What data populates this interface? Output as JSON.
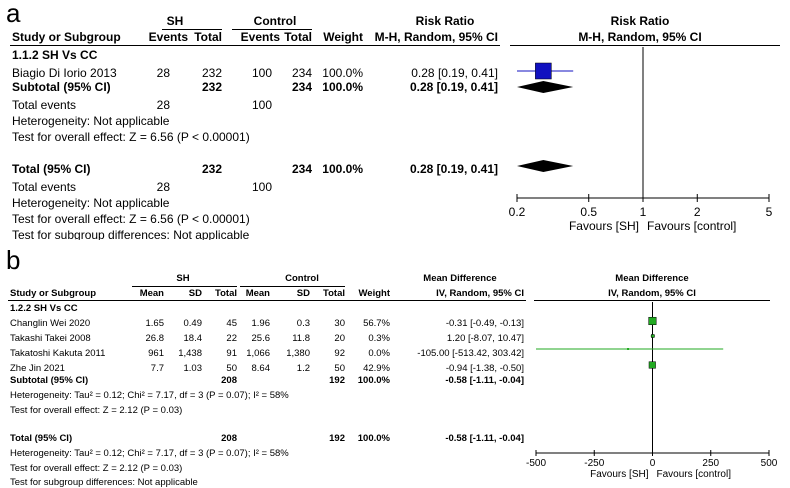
{
  "panels": {
    "a": {
      "letter": "a",
      "group_left": "SH",
      "group_right": "Control",
      "col_study": "Study or Subgroup",
      "col_events": "Events",
      "col_total": "Total",
      "col_weight": "Weight",
      "effect_title": "Risk Ratio",
      "effect_method": "M-H, Random, 95% CI",
      "plot_title": "Risk Ratio",
      "plot_method": "M-H, Random, 95% CI",
      "subgroup_label": "1.1.2 SH Vs CC",
      "studies": [
        {
          "name": "Biagio Di Iorio 2013",
          "ev1": "28",
          "tot1": "232",
          "ev2": "100",
          "tot2": "234",
          "weight": "100.0%",
          "ci": "0.28 [0.19, 0.41]"
        }
      ],
      "subtotal": {
        "label": "Subtotal (95% CI)",
        "tot1": "232",
        "tot2": "234",
        "weight": "100.0%",
        "ci": "0.28 [0.19, 0.41]"
      },
      "sub_events": {
        "label": "Total events",
        "ev1": "28",
        "ev2": "100"
      },
      "sub_het": "Heterogeneity: Not applicable",
      "sub_effect": "Test for overall effect: Z = 6.56 (P < 0.00001)",
      "total": {
        "label": "Total (95% CI)",
        "tot1": "232",
        "tot2": "234",
        "weight": "100.0%",
        "ci": "0.28 [0.19, 0.41]"
      },
      "total_events": {
        "label": "Total events",
        "ev1": "28",
        "ev2": "100"
      },
      "total_het": "Heterogeneity: Not applicable",
      "total_effect": "Test for overall effect: Z = 6.56 (P < 0.00001)",
      "subgroup_diff": "Test for subgroup differences: Not applicable",
      "axis_favours_left": "Favours [SH]",
      "axis_favours_right": "Favours [control]"
    },
    "b": {
      "letter": "b",
      "group_left": "SH",
      "group_right": "Control",
      "col_study": "Study or Subgroup",
      "col_mean": "Mean",
      "col_sd": "SD",
      "col_total": "Total",
      "col_weight": "Weight",
      "effect_title": "Mean Difference",
      "effect_method": "IV, Random, 95% CI",
      "plot_title": "Mean Difference",
      "plot_method": "IV, Random, 95% CI",
      "subgroup_label": "1.2.2 SH Vs CC",
      "studies": [
        {
          "name": "Changlin Wei 2020",
          "m1": "1.65",
          "sd1": "0.49",
          "n1": "45",
          "m2": "1.96",
          "sd2": "0.3",
          "n2": "30",
          "weight": "56.7%",
          "ci": "-0.31 [-0.49, -0.13]"
        },
        {
          "name": "Takashi Takei 2008",
          "m1": "26.8",
          "sd1": "18.4",
          "n1": "22",
          "m2": "25.6",
          "sd2": "11.8",
          "n2": "20",
          "weight": "0.3%",
          "ci": "1.20 [-8.07, 10.47]"
        },
        {
          "name": "Takatoshi Kakuta 2011",
          "m1": "961",
          "sd1": "1,438",
          "n1": "91",
          "m2": "1,066",
          "sd2": "1,380",
          "n2": "92",
          "weight": "0.0%",
          "ci": "-105.00 [-513.42, 303.42]"
        },
        {
          "name": "Zhe Jin 2021",
          "m1": "7.7",
          "sd1": "1.03",
          "n1": "50",
          "m2": "8.64",
          "sd2": "1.2",
          "n2": "50",
          "weight": "42.9%",
          "ci": "-0.94 [-1.38, -0.50]"
        }
      ],
      "subtotal": {
        "label": "Subtotal (95% CI)",
        "n1": "208",
        "n2": "192",
        "weight": "100.0%",
        "ci": "-0.58 [-1.11, -0.04]"
      },
      "sub_het": "Heterogeneity: Tau² = 0.12; Chi² = 7.17, df = 3 (P = 0.07); I² = 58%",
      "sub_effect": "Test for overall effect: Z = 2.12 (P = 0.03)",
      "total": {
        "label": "Total (95% CI)",
        "n1": "208",
        "n2": "192",
        "weight": "100.0%",
        "ci": "-0.58 [-1.11, -0.04]"
      },
      "total_het": "Heterogeneity: Tau² = 0.12; Chi² = 7.17, df = 3 (P = 0.07); I² = 58%",
      "total_effect": "Test for overall effect: Z = 2.12 (P = 0.03)",
      "subgroup_diff": "Test for subgroup differences: Not applicable",
      "axis_favours_left": "Favours [SH]",
      "axis_favours_right": "Favours [control]"
    }
  },
  "chart_data": [
    {
      "type": "forest",
      "title": "Risk Ratio",
      "scale": "log",
      "xlim": [
        0.2,
        5
      ],
      "ticks": [
        0.2,
        0.5,
        1,
        2,
        5
      ],
      "tick_labels": [
        "0.2",
        "0.5",
        "1",
        "2",
        "5"
      ],
      "null_value": 1,
      "xlabel_left": "Favours [SH]",
      "xlabel_right": "Favours [control]",
      "studies": [
        {
          "name": "Biagio Di Iorio 2013",
          "est": 0.28,
          "lo": 0.19,
          "hi": 0.41,
          "weight": 100.0
        }
      ],
      "subtotals": [
        {
          "name": "Subtotal (95% CI)",
          "est": 0.28,
          "lo": 0.19,
          "hi": 0.41
        }
      ],
      "total": {
        "name": "Total (95% CI)",
        "est": 0.28,
        "lo": 0.19,
        "hi": 0.41
      },
      "colors": {
        "square": "#1010c0",
        "line": "#1010c0",
        "diamond": "#000000"
      }
    },
    {
      "type": "forest",
      "title": "Mean Difference",
      "scale": "linear",
      "xlim": [
        -500,
        500
      ],
      "ticks": [
        -500,
        -250,
        0,
        250,
        500
      ],
      "tick_labels": [
        "-500",
        "-250",
        "0",
        "250",
        "500"
      ],
      "null_value": 0,
      "xlabel_left": "Favours [SH]",
      "xlabel_right": "Favours [control]",
      "studies": [
        {
          "name": "Changlin Wei 2020",
          "est": -0.31,
          "lo": -0.49,
          "hi": -0.13,
          "weight": 56.7
        },
        {
          "name": "Takashi Takei 2008",
          "est": 1.2,
          "lo": -8.07,
          "hi": 10.47,
          "weight": 0.3
        },
        {
          "name": "Takatoshi Kakuta 2011",
          "est": -105.0,
          "lo": -513.42,
          "hi": 303.42,
          "weight": 0.0
        },
        {
          "name": "Zhe Jin 2021",
          "est": -0.94,
          "lo": -1.38,
          "hi": -0.5,
          "weight": 42.9
        }
      ],
      "subtotals": [
        {
          "name": "Subtotal (95% CI)",
          "est": -0.58,
          "lo": -1.11,
          "hi": -0.04
        }
      ],
      "total": {
        "name": "Total (95% CI)",
        "est": -0.58,
        "lo": -1.11,
        "hi": -0.04
      },
      "colors": {
        "square": "#22aa22",
        "line": "#22aa22",
        "diamond": "#000000"
      }
    }
  ]
}
